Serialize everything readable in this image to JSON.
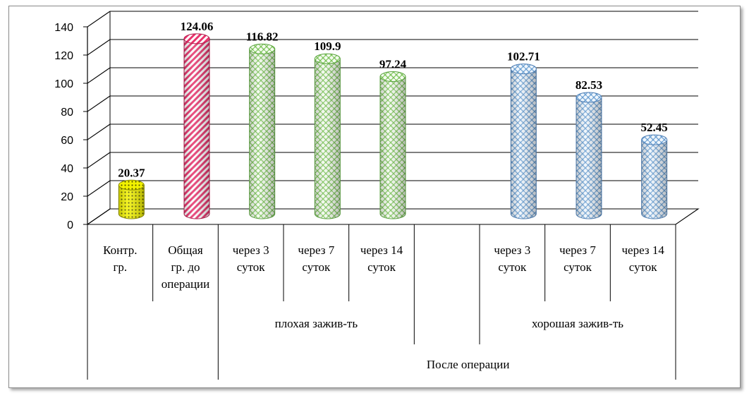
{
  "chart_data": {
    "type": "bar",
    "style": "3d-cylinder",
    "ylim": [
      0,
      140
    ],
    "yticks": [
      0,
      20,
      40,
      60,
      80,
      100,
      120,
      140
    ],
    "grid": true,
    "categories": [
      {
        "label": [
          "Контр.",
          "гр."
        ],
        "value": 20.37,
        "value_label": "20.37",
        "color": "#e6e600",
        "pattern": "dots"
      },
      {
        "label": [
          "Общая",
          "гр. до",
          "операции"
        ],
        "value": 124.06,
        "value_label": "124.06",
        "color": "#e8336c",
        "pattern": "diagonal"
      },
      {
        "label": [
          "через 3",
          "суток"
        ],
        "value": 116.82,
        "value_label": "116.82",
        "color": "#8fd46a",
        "pattern": "weave"
      },
      {
        "label": [
          "через 7",
          "суток"
        ],
        "value": 109.9,
        "value_label": "109.9",
        "color": "#8fd46a",
        "pattern": "weave"
      },
      {
        "label": [
          "через 14",
          "суток"
        ],
        "value": 97.24,
        "value_label": "97.24",
        "color": "#8fd46a",
        "pattern": "weave"
      },
      {
        "label": [],
        "value": null,
        "value_label": "",
        "color": "",
        "pattern": ""
      },
      {
        "label": [
          "через 3",
          "суток"
        ],
        "value": 102.71,
        "value_label": "102.71",
        "color": "#6fa8dc",
        "pattern": "weave"
      },
      {
        "label": [
          "через 7",
          "суток"
        ],
        "value": 82.53,
        "value_label": "82.53",
        "color": "#6fa8dc",
        "pattern": "weave"
      },
      {
        "label": [
          "через 14",
          "суток"
        ],
        "value": 52.45,
        "value_label": "52.45",
        "color": "#6fa8dc",
        "pattern": "weave"
      }
    ],
    "group_labels": {
      "bad": "плохая зажив-ть",
      "good": "хорошая зажив-ть",
      "after": "После операции"
    }
  }
}
